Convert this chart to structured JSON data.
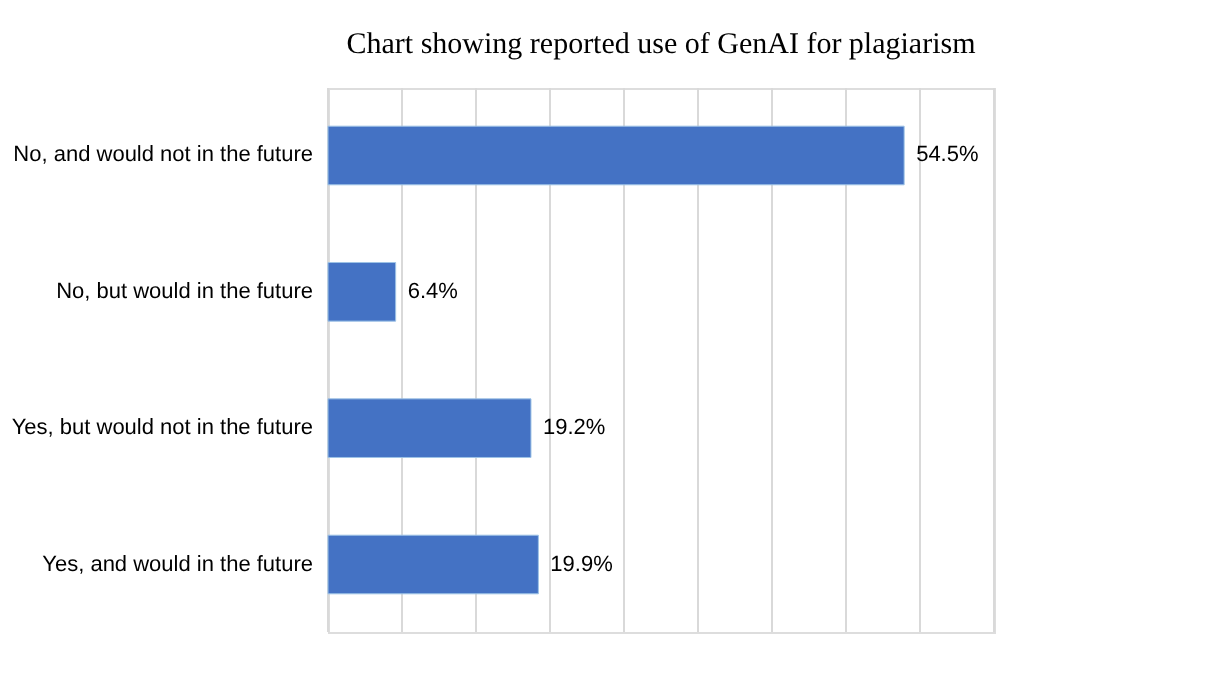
{
  "chart_data": {
    "type": "bar",
    "orientation": "horizontal",
    "title": "Chart showing reported use of GenAI for plagiarism",
    "categories": [
      "No, and would not in the future",
      "No, but would in the future",
      "Yes, but would not in the future",
      "Yes, and would in the future"
    ],
    "values": [
      54.5,
      6.4,
      19.2,
      19.9
    ],
    "value_labels": [
      "54.5%",
      "6.4%",
      "19.2%",
      "19.9%"
    ],
    "color": "#4472c4",
    "xlim": [
      0,
      63
    ],
    "xticks": [
      {
        "value": 0,
        "label": null
      },
      {
        "value": 7,
        "label": null
      },
      {
        "value": 14,
        "label": null
      },
      {
        "value": 21,
        "label": null
      },
      {
        "value": 28,
        "label": null
      },
      {
        "value": 35,
        "label": null
      },
      {
        "value": 42,
        "label": null
      },
      {
        "value": 49,
        "label": null
      },
      {
        "value": 56,
        "label": null
      },
      {
        "value": 63,
        "label": null
      }
    ],
    "grid": "x",
    "tick_labels": "y"
  }
}
